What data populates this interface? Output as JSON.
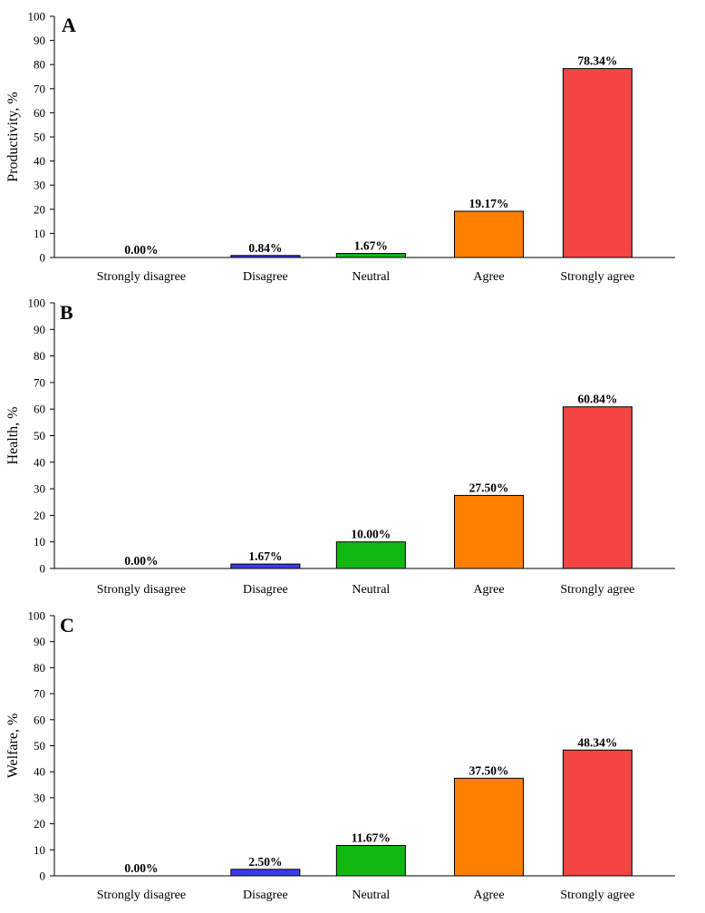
{
  "colors": {
    "strongly_disagree": "#ffffff",
    "disagree": "#3b3bf0",
    "neutral": "#12b812",
    "agree": "#ff8000",
    "strongly_agree": "#f54444"
  },
  "chart_data": [
    {
      "type": "bar",
      "panel": "A",
      "ylabel": "Productivity, %",
      "categories": [
        "Strongly disagree",
        "Disagree",
        "Neutral",
        "Agree",
        "Strongly agree"
      ],
      "values": [
        0.0,
        0.84,
        1.67,
        19.17,
        78.34
      ],
      "value_labels": [
        "0.00%",
        "0.84%",
        "1.67%",
        "19.17%",
        "78.34%"
      ],
      "ylim": [
        0,
        100
      ],
      "yticks": [
        0,
        10,
        20,
        30,
        40,
        50,
        60,
        70,
        80,
        90,
        100
      ],
      "grid": false
    },
    {
      "type": "bar",
      "panel": "B",
      "ylabel": "Health, %",
      "categories": [
        "Strongly disagree",
        "Disagree",
        "Neutral",
        "Agree",
        "Strongly agree"
      ],
      "values": [
        0.0,
        1.67,
        10.0,
        27.5,
        60.84
      ],
      "value_labels": [
        "0.00%",
        "1.67%",
        "10.00%",
        "27.50%",
        "60.84%"
      ],
      "ylim": [
        0,
        100
      ],
      "yticks": [
        0,
        10,
        20,
        30,
        40,
        50,
        60,
        70,
        80,
        90,
        100
      ],
      "grid": false
    },
    {
      "type": "bar",
      "panel": "C",
      "ylabel": "Welfare, %",
      "categories": [
        "Strongly disagree",
        "Disagree",
        "Neutral",
        "Agree",
        "Strongly agree"
      ],
      "values": [
        0.0,
        2.5,
        11.67,
        37.5,
        48.34
      ],
      "value_labels": [
        "0.00%",
        "2.50%",
        "11.67%",
        "37.50%",
        "48.34%"
      ],
      "ylim": [
        0,
        100
      ],
      "yticks": [
        0,
        10,
        20,
        30,
        40,
        50,
        60,
        70,
        80,
        90,
        100
      ],
      "grid": false
    }
  ]
}
